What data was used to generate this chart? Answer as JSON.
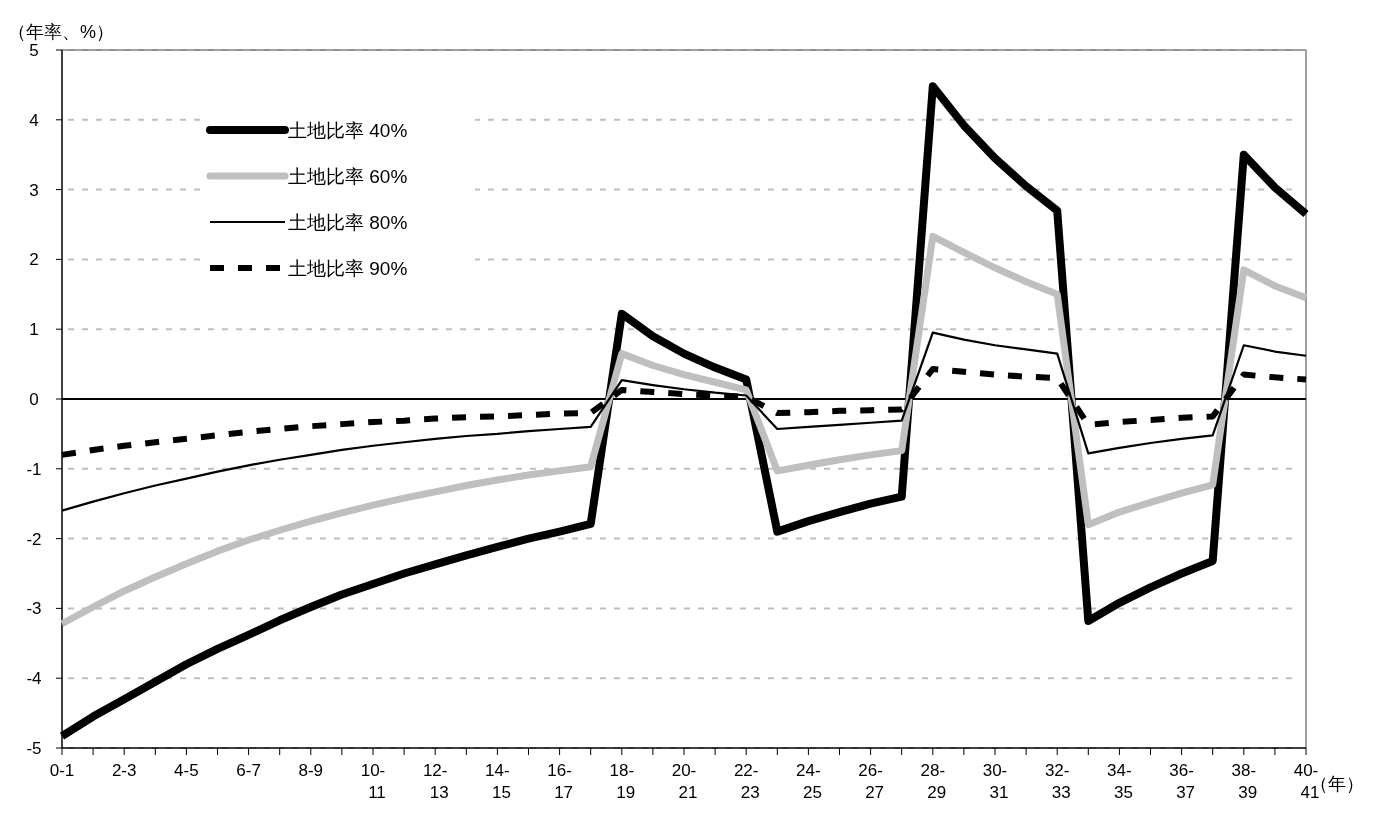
{
  "chart_data": {
    "type": "line",
    "ylabel": "（年率、%）",
    "xlabel": "（年）",
    "categories": [
      "0-1",
      null,
      "2-3",
      null,
      "4-5",
      null,
      "6-7",
      null,
      "8-9",
      null,
      "10-11",
      null,
      "12-13",
      null,
      "14-15",
      null,
      "16-17",
      null,
      "18-19",
      null,
      "20-21",
      null,
      "22-23",
      null,
      "24-25",
      null,
      "26-27",
      null,
      "28-29",
      null,
      "30-31",
      null,
      "32-33",
      null,
      "34-35",
      null,
      "36-37",
      null,
      "38-39",
      null,
      "40-41"
    ],
    "series": [
      {
        "name": "土地比率 40%",
        "color": "#000000",
        "line_style": "solid",
        "values": [
          -4.83,
          -4.55,
          -4.3,
          -4.05,
          -3.8,
          -3.58,
          -3.38,
          -3.17,
          -2.98,
          -2.8,
          -2.65,
          -2.5,
          -2.37,
          -2.24,
          -2.12,
          -2.0,
          -1.9,
          -1.79,
          1.22,
          0.9,
          0.65,
          0.45,
          0.28,
          -1.9,
          -1.75,
          -1.62,
          -1.5,
          -1.4,
          4.48,
          3.92,
          3.45,
          3.05,
          2.7,
          -3.18,
          -2.92,
          -2.7,
          -2.5,
          -2.32,
          3.5,
          3.03,
          2.65
        ]
      },
      {
        "name": "土地比率 60%",
        "color": "#bfbfbf",
        "line_style": "solid",
        "values": [
          -3.22,
          -2.98,
          -2.75,
          -2.55,
          -2.36,
          -2.18,
          -2.02,
          -1.88,
          -1.75,
          -1.63,
          -1.52,
          -1.42,
          -1.33,
          -1.24,
          -1.16,
          -1.09,
          -1.03,
          -0.97,
          0.65,
          0.48,
          0.35,
          0.24,
          0.13,
          -1.03,
          -0.95,
          -0.87,
          -0.8,
          -0.74,
          2.33,
          2.1,
          1.88,
          1.68,
          1.5,
          -1.8,
          -1.62,
          -1.48,
          -1.35,
          -1.23,
          1.85,
          1.62,
          1.45
        ]
      },
      {
        "name": "土地比率 80%",
        "color": "#000000",
        "line_style": "solid",
        "values": [
          -1.6,
          -1.47,
          -1.35,
          -1.24,
          -1.14,
          -1.04,
          -0.95,
          -0.87,
          -0.8,
          -0.73,
          -0.67,
          -0.62,
          -0.57,
          -0.53,
          -0.5,
          -0.46,
          -0.43,
          -0.4,
          0.27,
          0.2,
          0.14,
          0.09,
          0.05,
          -0.43,
          -0.4,
          -0.37,
          -0.34,
          -0.31,
          0.95,
          0.85,
          0.77,
          0.71,
          0.65,
          -0.78,
          -0.7,
          -0.63,
          -0.57,
          -0.52,
          0.77,
          0.68,
          0.62
        ]
      },
      {
        "name": "土地比率 90%",
        "color": "#000000",
        "line_style": "dashed",
        "values": [
          -0.8,
          -0.73,
          -0.67,
          -0.62,
          -0.57,
          -0.52,
          -0.47,
          -0.43,
          -0.39,
          -0.36,
          -0.33,
          -0.31,
          -0.28,
          -0.26,
          -0.25,
          -0.23,
          -0.21,
          -0.2,
          0.13,
          0.1,
          0.07,
          0.05,
          0.03,
          -0.2,
          -0.19,
          -0.17,
          -0.16,
          -0.15,
          0.43,
          0.39,
          0.35,
          0.32,
          0.3,
          -0.37,
          -0.33,
          -0.3,
          -0.27,
          -0.25,
          0.35,
          0.31,
          0.28
        ]
      }
    ],
    "ylim": [
      -5,
      5
    ],
    "yticks": [
      -5,
      -4,
      -3,
      -2,
      -1,
      0,
      1,
      2,
      3,
      4,
      5
    ],
    "grid": "y",
    "legend": "top left",
    "marker": "none",
    "ref_lines": [
      {
        "axis": "y",
        "value": 0,
        "color": "#000000"
      }
    ]
  }
}
